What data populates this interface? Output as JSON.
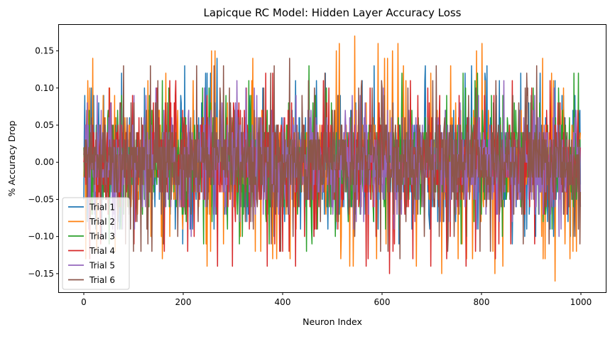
{
  "chart_data": {
    "type": "line",
    "title": "Lapicque RC Model: Hidden Layer Accuracy Loss",
    "xlabel": "Neuron Index",
    "ylabel": "% Accuracy Drop",
    "xlim": [
      -50,
      1050
    ],
    "ylim": [
      -0.175,
      0.185
    ],
    "x_ticks": [
      0,
      200,
      400,
      600,
      800,
      1000
    ],
    "y_ticks": [
      -0.15,
      -0.1,
      -0.05,
      0.0,
      0.05,
      0.1,
      0.15
    ],
    "x_tick_labels": [
      "0",
      "200",
      "400",
      "600",
      "800",
      "1000"
    ],
    "y_tick_labels": [
      "−0.15",
      "−0.10",
      "−0.05",
      "0.00",
      "0.05",
      "0.10",
      "0.15"
    ],
    "legend_position": "lower-left",
    "grid": false,
    "n_points": 1000,
    "series": [
      {
        "name": "Trial 1",
        "color": "#1f77b4",
        "range": [
          -0.11,
          0.14
        ],
        "extremes": [
          [
            199,
            -0.11
          ],
          [
            268,
            0.14
          ],
          [
            634,
            -0.11
          ],
          [
            862,
            -0.11
          ],
          [
            938,
            -0.09
          ],
          [
            965,
            0.09
          ]
        ]
      },
      {
        "name": "Trial 2",
        "color": "#ff7f0e",
        "range": [
          -0.16,
          0.17
        ],
        "extremes": [
          [
            8,
            0.11
          ],
          [
            545,
            0.17
          ],
          [
            807,
            0.11
          ],
          [
            948,
            -0.16
          ]
        ]
      },
      {
        "name": "Trial 3",
        "color": "#2ca02c",
        "range": [
          -0.12,
          0.13
        ],
        "extremes": [
          [
            448,
            -0.12
          ],
          [
            453,
            0.13
          ],
          [
            252,
            0.1
          ]
        ]
      },
      {
        "name": "Trial 4",
        "color": "#d62728",
        "range": [
          -0.15,
          0.12
        ],
        "extremes": [
          [
            366,
            0.12
          ],
          [
            380,
            0.12
          ],
          [
            615,
            -0.15
          ],
          [
            588,
            -0.1
          ]
        ]
      },
      {
        "name": "Trial 5",
        "color": "#9467bd",
        "range": [
          -0.1,
          0.11
        ],
        "extremes": [
          [
            63,
            -0.1
          ],
          [
            216,
            -0.1
          ],
          [
            308,
            0.11
          ],
          [
            845,
            0.11
          ],
          [
            956,
            -0.1
          ]
        ]
      },
      {
        "name": "Trial 6",
        "color": "#8c564b",
        "range": [
          -0.13,
          0.14
        ],
        "extremes": [
          [
            414,
            0.14
          ],
          [
            636,
            -0.13
          ],
          [
            127,
            -0.09
          ]
        ]
      }
    ]
  }
}
